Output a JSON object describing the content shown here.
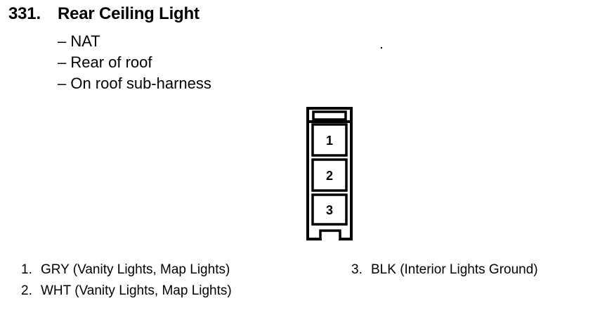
{
  "header": {
    "number": "331.",
    "title": "Rear Ceiling Light"
  },
  "details": [
    "– NAT",
    "– Rear of roof",
    "– On roof sub-harness"
  ],
  "connector": {
    "pins": [
      "1",
      "2",
      "3"
    ]
  },
  "legend": [
    {
      "index": "1.",
      "text": "GRY (Vanity Lights, Map Lights)"
    },
    {
      "index": "2.",
      "text": "WHT (Vanity Lights, Map Lights)"
    },
    {
      "index": "3.",
      "text": "BLK (Interior Lights Ground)"
    }
  ]
}
